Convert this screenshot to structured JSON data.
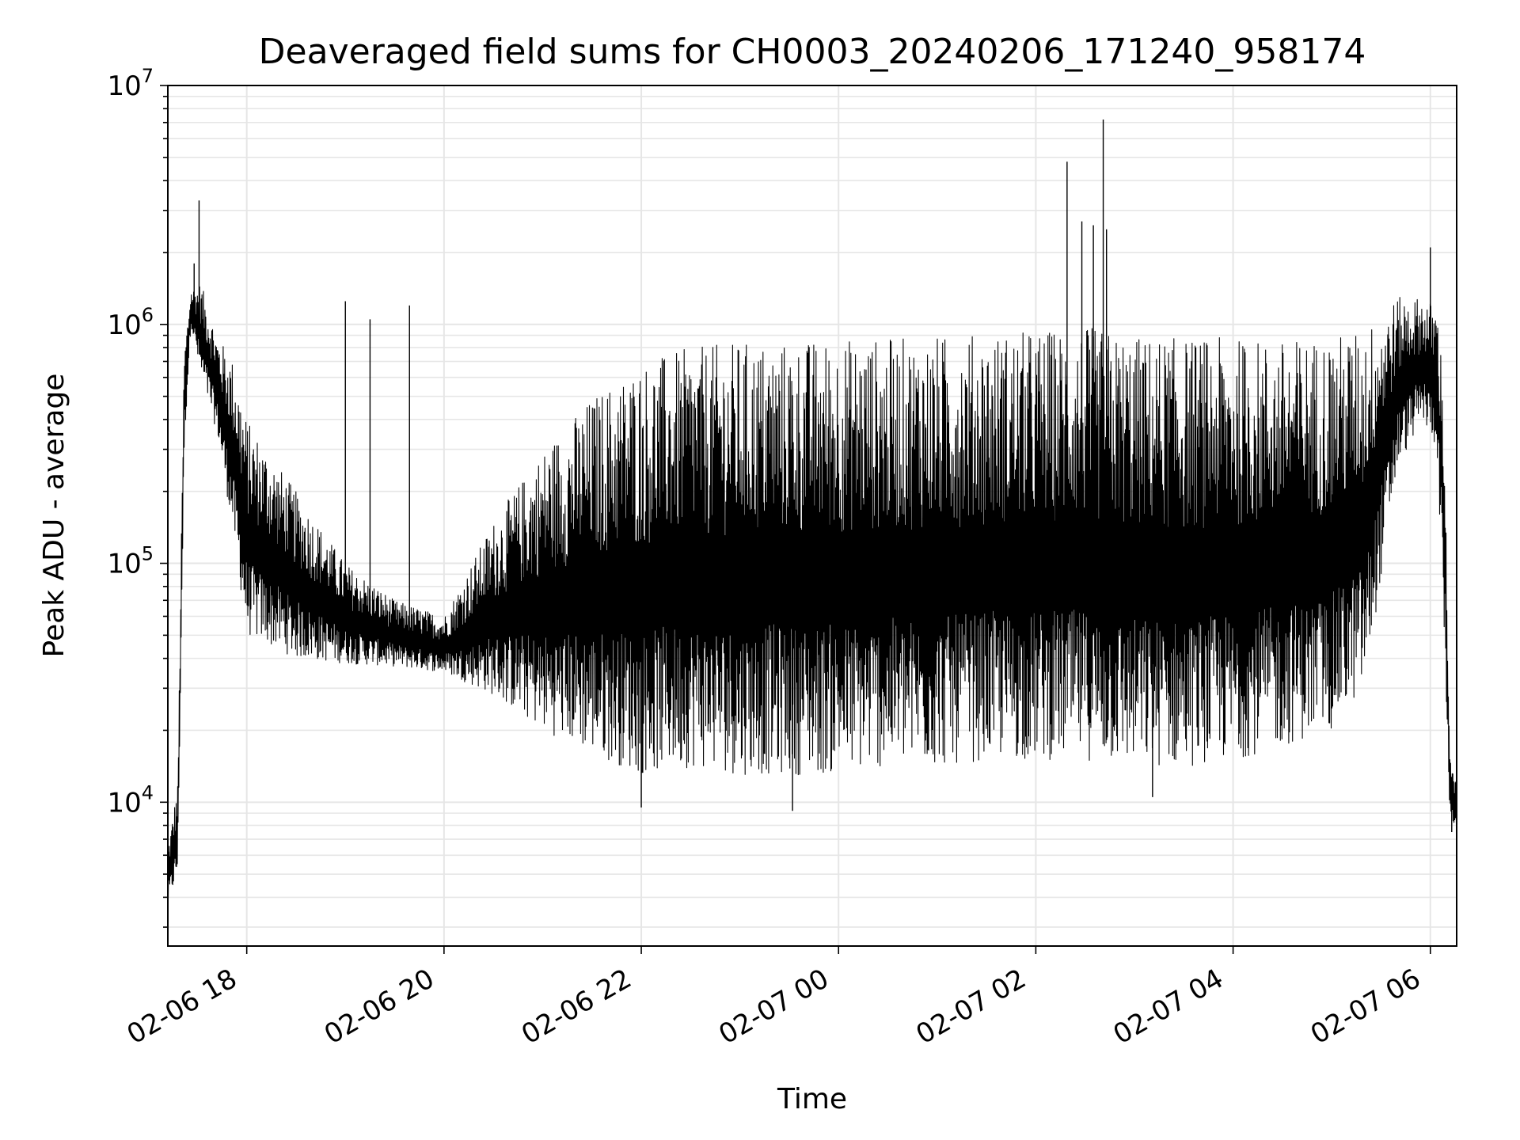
{
  "chart_data": {
    "type": "line",
    "title": "Deaveraged field sums for CH0003_20240206_171240_958174",
    "xlabel": "Time",
    "ylabel": "Peak ADU - average",
    "y_scale": "log",
    "xlim": [
      "2024-02-06 17:12",
      "2024-02-07 06:16"
    ],
    "ylim": [
      2500,
      10000000
    ],
    "grid": true,
    "legend": "none",
    "line_color": "#000000",
    "grid_color": "#e6e6e6",
    "x_ticks": [
      {
        "time": "2024-02-06 18:00",
        "label": "02-06 18"
      },
      {
        "time": "2024-02-06 20:00",
        "label": "02-06 20"
      },
      {
        "time": "2024-02-06 22:00",
        "label": "02-06 22"
      },
      {
        "time": "2024-02-07 00:00",
        "label": "02-07 00"
      },
      {
        "time": "2024-02-07 02:00",
        "label": "02-07 02"
      },
      {
        "time": "2024-02-07 04:00",
        "label": "02-07 04"
      },
      {
        "time": "2024-02-07 06:00",
        "label": "02-07 06"
      }
    ],
    "y_ticks": [
      {
        "value": 10000,
        "base": "10",
        "exp": "4"
      },
      {
        "value": 100000,
        "base": "10",
        "exp": "5"
      },
      {
        "value": 1000000,
        "base": "10",
        "exp": "6"
      },
      {
        "value": 10000000,
        "base": "10",
        "exp": "7"
      }
    ],
    "series": [
      {
        "envelope": [
          {
            "x": "2024-02-06 17:12",
            "low": 3700,
            "high": 6500
          },
          {
            "x": "2024-02-06 17:18",
            "low": 5000,
            "high": 12000
          },
          {
            "x": "2024-02-06 17:22",
            "low": 300000,
            "high": 800000
          },
          {
            "x": "2024-02-06 17:26",
            "low": 1000000,
            "high": 1400000
          },
          {
            "x": "2024-02-06 17:32",
            "low": 600000,
            "high": 1500000
          },
          {
            "x": "2024-02-06 17:42",
            "low": 350000,
            "high": 900000
          },
          {
            "x": "2024-02-06 17:52",
            "low": 130000,
            "high": 700000
          },
          {
            "x": "2024-02-06 18:00",
            "low": 50000,
            "high": 400000
          },
          {
            "x": "2024-02-06 18:30",
            "low": 40000,
            "high": 200000
          },
          {
            "x": "2024-02-06 19:00",
            "low": 38000,
            "high": 100000
          },
          {
            "x": "2024-02-06 19:30",
            "low": 37000,
            "high": 70000
          },
          {
            "x": "2024-02-06 20:00",
            "low": 35000,
            "high": 60000
          },
          {
            "x": "2024-02-06 20:30",
            "low": 28000,
            "high": 150000
          },
          {
            "x": "2024-02-06 21:00",
            "low": 20000,
            "high": 300000
          },
          {
            "x": "2024-02-06 21:30",
            "low": 16000,
            "high": 500000
          },
          {
            "x": "2024-02-06 22:00",
            "low": 13000,
            "high": 700000
          },
          {
            "x": "2024-02-06 22:30",
            "low": 14000,
            "high": 800000
          },
          {
            "x": "2024-02-06 23:00",
            "low": 13000,
            "high": 850000
          },
          {
            "x": "2024-02-06 23:30",
            "low": 13000,
            "high": 850000
          },
          {
            "x": "2024-02-07 00:00",
            "low": 13000,
            "high": 880000
          },
          {
            "x": "2024-02-07 00:30",
            "low": 14000,
            "high": 880000
          },
          {
            "x": "2024-02-07 01:00",
            "low": 14000,
            "high": 900000
          },
          {
            "x": "2024-02-07 01:30",
            "low": 15000,
            "high": 920000
          },
          {
            "x": "2024-02-07 02:00",
            "low": 15000,
            "high": 950000
          },
          {
            "x": "2024-02-07 02:30",
            "low": 15000,
            "high": 980000
          },
          {
            "x": "2024-02-07 03:00",
            "low": 14000,
            "high": 900000
          },
          {
            "x": "2024-02-07 03:30",
            "low": 14000,
            "high": 880000
          },
          {
            "x": "2024-02-07 04:00",
            "low": 15000,
            "high": 880000
          },
          {
            "x": "2024-02-07 04:30",
            "low": 17000,
            "high": 860000
          },
          {
            "x": "2024-02-07 05:00",
            "low": 20000,
            "high": 900000
          },
          {
            "x": "2024-02-07 05:20",
            "low": 30000,
            "high": 950000
          },
          {
            "x": "2024-02-07 05:40",
            "low": 250000,
            "high": 1300000
          },
          {
            "x": "2024-02-07 05:55",
            "low": 400000,
            "high": 1300000
          },
          {
            "x": "2024-02-07 06:04",
            "low": 300000,
            "high": 1200000
          },
          {
            "x": "2024-02-07 06:08",
            "low": 60000,
            "high": 600000
          },
          {
            "x": "2024-02-07 06:12",
            "low": 8000,
            "high": 15000
          },
          {
            "x": "2024-02-07 06:16",
            "low": 8000,
            "high": 12000
          }
        ],
        "peaks": [
          {
            "x": "2024-02-06 17:31",
            "y": 3300000
          },
          {
            "x": "2024-02-06 17:28",
            "y": 1800000
          },
          {
            "x": "2024-02-06 19:00",
            "y": 1250000
          },
          {
            "x": "2024-02-06 19:15",
            "y": 1050000
          },
          {
            "x": "2024-02-06 19:39",
            "y": 1200000
          },
          {
            "x": "2024-02-07 02:19",
            "y": 4800000
          },
          {
            "x": "2024-02-07 02:28",
            "y": 2700000
          },
          {
            "x": "2024-02-07 02:35",
            "y": 2600000
          },
          {
            "x": "2024-02-07 02:41",
            "y": 7200000
          },
          {
            "x": "2024-02-07 02:43",
            "y": 2500000
          },
          {
            "x": "2024-02-07 06:00",
            "y": 2100000
          },
          {
            "x": "2024-02-06 22:00",
            "y": 9500
          },
          {
            "x": "2024-02-06 23:32",
            "y": 9200
          },
          {
            "x": "2024-02-07 03:11",
            "y": 10500
          },
          {
            "x": "2024-02-07 06:13",
            "y": 7500
          }
        ]
      }
    ]
  }
}
